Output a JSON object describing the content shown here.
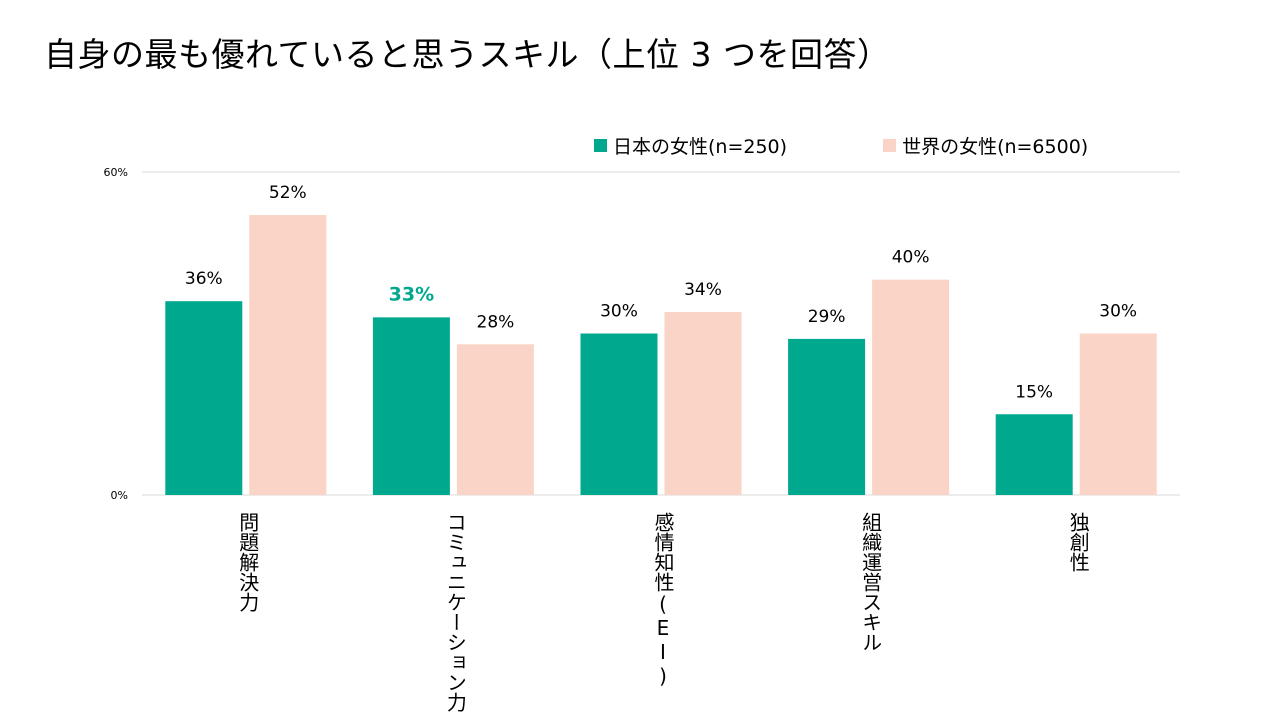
{
  "page": {
    "title": "自身の最も優れていると思うスキル（上位 3 つを回答）"
  },
  "legend": {
    "items": [
      {
        "label": "日本の女性(n=250)",
        "color": "#00a88e"
      },
      {
        "label": "世界の女性(n=6500)",
        "color": "#fad4c6"
      }
    ]
  },
  "colors": {
    "highlight_label": "#00a88e",
    "gridline": "#d9d9d9",
    "axis_text": "#000000"
  },
  "chart_data": {
    "type": "bar",
    "title": "自身の最も優れていると思うスキル（上位 3 つを回答）",
    "categories": [
      "問題解決力",
      "コミュニケーション力",
      "感情知性(EI)",
      "組織運営スキル",
      "独創性"
    ],
    "series": [
      {
        "name": "日本の女性(n=250)",
        "values": [
          36,
          33,
          30,
          29,
          15
        ],
        "color": "#00a88e"
      },
      {
        "name": "世界の女性(n=6500)",
        "values": [
          52,
          28,
          34,
          40,
          30
        ],
        "color": "#fad4c6"
      }
    ],
    "value_labels": [
      [
        "36%",
        "33%",
        "30%",
        "29%",
        "15%"
      ],
      [
        "52%",
        "28%",
        "34%",
        "40%",
        "30%"
      ]
    ],
    "highlighted": {
      "series": 0,
      "category": 1
    },
    "ylim": [
      0,
      60
    ],
    "yticks": [
      {
        "value": 0,
        "label": "0%"
      },
      {
        "value": 60,
        "label": "60%"
      }
    ],
    "xlabel": "",
    "ylabel": "",
    "legend_position": "top-right",
    "grid": true
  }
}
